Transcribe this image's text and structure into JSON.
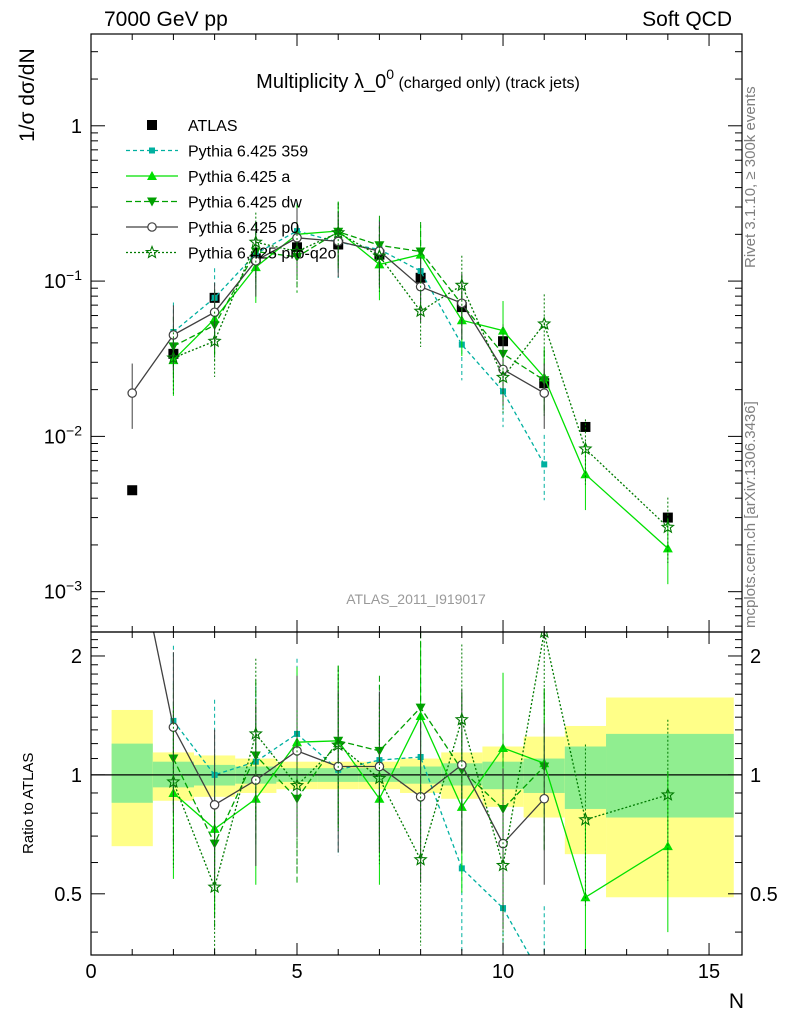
{
  "header": {
    "left": "7000 GeV pp",
    "right": "Soft QCD"
  },
  "side": {
    "rivet": "Rivet 3.1.10, ≥ 300k events",
    "mcplots": "mcplots.cern.ch [arXiv:1306.3436]"
  },
  "chart_data": [
    {
      "type": "scatter",
      "title": "Multiplicity λ_0",
      "title_sup": "0",
      "title_suffix": " (charged only) (track jets)",
      "ylabel": "1/σ dσ/dN",
      "yscale": "log",
      "ylim": [
        0.00055,
        3.9
      ],
      "xlim": [
        0,
        15.8
      ],
      "watermark": "ATLAS_2011_I919017",
      "legend_position": "top-left",
      "y_ticks": [
        {
          "value": 1,
          "label": "1"
        },
        {
          "value": 0.1,
          "label": "10",
          "exp": "−1"
        },
        {
          "value": 0.01,
          "label": "10",
          "exp": "−2"
        },
        {
          "value": 0.001,
          "label": "10",
          "exp": "−3"
        }
      ],
      "series": [
        {
          "name": "ATLAS",
          "color": "#000000",
          "marker": "square",
          "dash": "none",
          "x": [
            1,
            2,
            3,
            4,
            5,
            6,
            7,
            8,
            9,
            10,
            11,
            12,
            14
          ],
          "values": [
            0.0045,
            0.034,
            0.078,
            0.14,
            0.165,
            0.172,
            0.148,
            0.105,
            0.068,
            0.041,
            0.022,
            0.0115,
            0.003
          ]
        },
        {
          "name": "Pythia 6.425 359",
          "color": "#00b0a0",
          "marker": "square-small",
          "dash": "4,3",
          "x": [
            2,
            3,
            4,
            5,
            6,
            7,
            8,
            9,
            10,
            11
          ],
          "values": [
            0.047,
            0.078,
            0.15,
            0.21,
            0.178,
            0.16,
            0.116,
            0.039,
            0.0195,
            0.0066
          ]
        },
        {
          "name": "Pythia 6.425 a",
          "color": "#00e000",
          "marker": "triangle-up",
          "dash": "none",
          "x": [
            2,
            3,
            4,
            5,
            6,
            7,
            8,
            9,
            10,
            11,
            12,
            14
          ],
          "values": [
            0.031,
            0.057,
            0.123,
            0.2,
            0.21,
            0.128,
            0.148,
            0.056,
            0.048,
            0.024,
            0.0057,
            0.0019
          ]
        },
        {
          "name": "Pythia 6.425 dw",
          "color": "#00a000",
          "marker": "triangle-down",
          "dash": "6,3",
          "x": [
            2,
            3,
            4,
            5,
            6,
            7,
            8,
            9,
            10,
            11
          ],
          "values": [
            0.038,
            0.052,
            0.155,
            0.143,
            0.208,
            0.17,
            0.155,
            0.071,
            0.034,
            0.023
          ]
        },
        {
          "name": "Pythia 6.425 p0",
          "color": "#404040",
          "marker": "circle",
          "dash": "none",
          "x": [
            1,
            2,
            3,
            4,
            5,
            6,
            7,
            8,
            9,
            10,
            11
          ],
          "values": [
            0.019,
            0.045,
            0.063,
            0.135,
            0.19,
            0.18,
            0.156,
            0.092,
            0.072,
            0.027,
            0.019
          ]
        },
        {
          "name": "Pythia 6.425 pro-q2o",
          "color": "#007a00",
          "marker": "star",
          "dash": "2,2",
          "x": [
            2,
            3,
            4,
            5,
            6,
            7,
            8,
            9,
            10,
            11,
            12,
            14
          ],
          "values": [
            0.032,
            0.041,
            0.178,
            0.155,
            0.205,
            0.145,
            0.064,
            0.094,
            0.024,
            0.053,
            0.0083,
            0.0026
          ]
        }
      ]
    },
    {
      "type": "line",
      "ylabel": "Ratio to ATLAS",
      "xlabel": "N",
      "ylim": [
        0.35,
        2.3
      ],
      "xlim": [
        0,
        15.8
      ],
      "y_ticks": [
        0.5,
        1,
        2
      ],
      "y_tick_labels": [
        "0.5",
        "1",
        "2"
      ],
      "x_ticks": [
        0,
        5,
        10,
        15
      ],
      "x_tick_labels": [
        "0",
        "5",
        "10",
        "15"
      ],
      "bands": [
        {
          "x0": 0.5,
          "x1": 1.5,
          "y1_lo": 0.85,
          "y1_hi": 1.2,
          "y2_lo": 0.66,
          "y2_hi": 1.46
        },
        {
          "x0": 1.5,
          "x1": 2.5,
          "y1_lo": 0.93,
          "y1_hi": 1.08,
          "y2_lo": 0.86,
          "y2_hi": 1.14
        },
        {
          "x0": 2.5,
          "x1": 3.5,
          "y1_lo": 0.94,
          "y1_hi": 1.06,
          "y2_lo": 0.88,
          "y2_hi": 1.12
        },
        {
          "x0": 3.5,
          "x1": 4.5,
          "y1_lo": 0.95,
          "y1_hi": 1.05,
          "y2_lo": 0.9,
          "y2_hi": 1.1
        },
        {
          "x0": 4.5,
          "x1": 5.5,
          "y1_lo": 0.96,
          "y1_hi": 1.04,
          "y2_lo": 0.92,
          "y2_hi": 1.08
        },
        {
          "x0": 5.5,
          "x1": 6.5,
          "y1_lo": 0.96,
          "y1_hi": 1.04,
          "y2_lo": 0.92,
          "y2_hi": 1.08
        },
        {
          "x0": 6.5,
          "x1": 7.5,
          "y1_lo": 0.96,
          "y1_hi": 1.04,
          "y2_lo": 0.92,
          "y2_hi": 1.08
        },
        {
          "x0": 7.5,
          "x1": 8.5,
          "y1_lo": 0.95,
          "y1_hi": 1.05,
          "y2_lo": 0.9,
          "y2_hi": 1.1
        },
        {
          "x0": 8.5,
          "x1": 9.5,
          "y1_lo": 0.94,
          "y1_hi": 1.07,
          "y2_lo": 0.87,
          "y2_hi": 1.14
        },
        {
          "x0": 9.5,
          "x1": 10.5,
          "y1_lo": 0.92,
          "y1_hi": 1.08,
          "y2_lo": 0.83,
          "y2_hi": 1.18
        },
        {
          "x0": 10.5,
          "x1": 11.5,
          "y1_lo": 0.9,
          "y1_hi": 1.1,
          "y2_lo": 0.78,
          "y2_hi": 1.25
        },
        {
          "x0": 11.5,
          "x1": 12.5,
          "y1_lo": 0.82,
          "y1_hi": 1.18,
          "y2_lo": 0.63,
          "y2_hi": 1.33
        },
        {
          "x0": 12.5,
          "x1": 15.6,
          "y1_lo": 0.78,
          "y1_hi": 1.27,
          "y2_lo": 0.49,
          "y2_hi": 1.57
        }
      ],
      "series": [
        {
          "name": "Pythia 6.425 359",
          "color": "#00b0a0",
          "marker": "square-small",
          "dash": "4,3",
          "x": [
            2,
            3,
            4,
            5,
            6,
            7,
            8,
            9,
            10,
            11
          ],
          "values": [
            1.37,
            1.0,
            1.08,
            1.27,
            1.03,
            1.09,
            1.11,
            0.58,
            0.46,
            0.3
          ]
        },
        {
          "name": "Pythia 6.425 a",
          "color": "#00e000",
          "marker": "triangle-up",
          "dash": "none",
          "x": [
            2,
            3,
            4,
            5,
            6,
            7,
            8,
            9,
            10,
            11,
            12,
            14
          ],
          "values": [
            0.9,
            0.73,
            0.87,
            1.21,
            1.22,
            0.87,
            1.41,
            0.83,
            1.17,
            1.07,
            0.49,
            0.66
          ]
        },
        {
          "name": "Pythia 6.425 dw",
          "color": "#00a000",
          "marker": "triangle-down",
          "dash": "6,3",
          "x": [
            2,
            3,
            4,
            5,
            6,
            7,
            8,
            9,
            10,
            11
          ],
          "values": [
            1.1,
            0.67,
            1.12,
            0.87,
            1.22,
            1.15,
            1.48,
            1.03,
            0.82,
            1.05
          ]
        },
        {
          "name": "Pythia 6.425 p0",
          "color": "#404040",
          "marker": "circle",
          "dash": "none",
          "x": [
            1,
            2,
            3,
            4,
            5,
            6,
            7,
            8,
            9,
            10,
            11
          ],
          "values": [
            4.2,
            1.32,
            0.84,
            0.97,
            1.15,
            1.05,
            1.05,
            0.88,
            1.06,
            0.67,
            0.87
          ]
        },
        {
          "name": "Pythia 6.425 pro-q2o",
          "color": "#007a00",
          "marker": "star",
          "dash": "2,2",
          "x": [
            2,
            3,
            4,
            5,
            6,
            7,
            8,
            9,
            10,
            11,
            12,
            14
          ],
          "values": [
            0.96,
            0.52,
            1.27,
            0.94,
            1.19,
            0.98,
            0.61,
            1.38,
            0.59,
            2.3,
            0.77,
            0.89
          ]
        }
      ]
    }
  ]
}
